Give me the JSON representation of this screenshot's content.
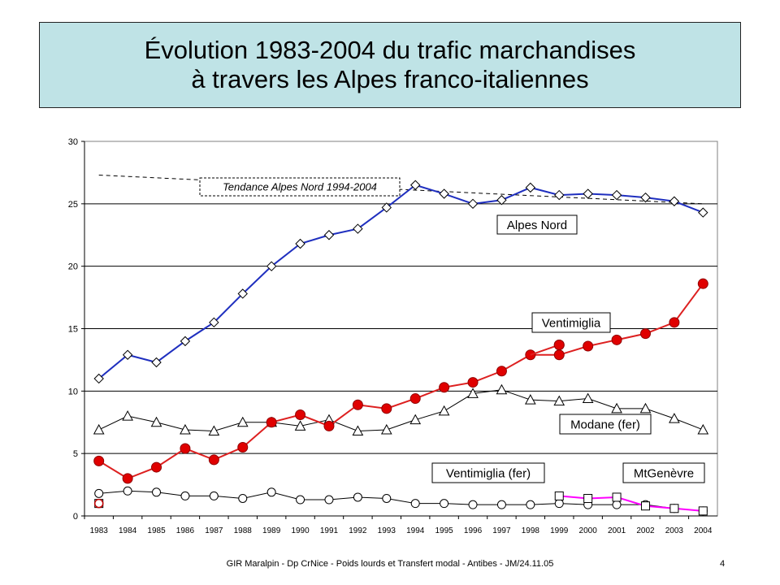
{
  "slide": {
    "title_line1": "Évolution 1983-2004 du trafic marchandises",
    "title_line2": "à travers les Alpes franco-italiennes",
    "footer": "GIR Maralpin - Dp CrNice - Poids lourds et Transfert modal - Antibes - JM/24.11.05",
    "page_number": "4"
  },
  "chart_data": {
    "type": "line",
    "title": "",
    "xlabel": "",
    "ylabel": "",
    "ylim": [
      0,
      30
    ],
    "yticks": [
      "0",
      "5",
      "10",
      "15",
      "20",
      "25",
      "30"
    ],
    "categories": [
      "1983",
      "1984",
      "1985",
      "1986",
      "1987",
      "1988",
      "1989",
      "1990",
      "1991",
      "1992",
      "1993",
      "1994",
      "1995",
      "1996",
      "1997",
      "1998",
      "1999",
      "2000",
      "2001",
      "2002",
      "2003",
      "2004"
    ],
    "grid": "horizontal",
    "series": [
      {
        "name": "Alpes Nord",
        "color": "#1f2fbf",
        "marker": "diamond",
        "values": [
          11.0,
          12.9,
          12.3,
          14.0,
          15.5,
          17.8,
          20.0,
          21.8,
          22.5,
          23.0,
          24.7,
          26.5,
          25.8,
          25.0,
          25.3,
          26.3,
          25.7,
          25.8,
          25.7,
          25.5,
          25.2,
          24.3
        ]
      },
      {
        "name": "Ventimiglia",
        "color": "#dd2020",
        "marker": "circle-filled",
        "values": [
          4.4,
          3.0,
          3.9,
          5.4,
          4.5,
          5.5,
          7.5,
          8.1,
          7.2,
          8.9,
          8.6,
          9.4,
          10.3,
          10.7,
          11.6,
          12.9,
          12.9,
          13.6,
          14.1,
          14.6,
          15.5,
          18.6
        ],
        "extra_points": [
          {
            "x": "1999",
            "y": 13.7
          }
        ]
      },
      {
        "name": "Modane (fer)",
        "color": "#000000",
        "marker": "triangle",
        "values": [
          6.9,
          8.0,
          7.5,
          6.9,
          6.8,
          7.5,
          7.5,
          7.2,
          7.7,
          6.8,
          6.9,
          7.7,
          8.4,
          9.8,
          10.1,
          9.3,
          9.2,
          9.4,
          8.6,
          8.6,
          7.8,
          6.9
        ]
      },
      {
        "name": "Ventimiglia (fer)",
        "color": "#000000",
        "marker": "circle-open",
        "values": [
          1.8,
          2.0,
          1.9,
          1.6,
          1.6,
          1.4,
          1.9,
          1.3,
          1.3,
          1.5,
          1.4,
          1.0,
          1.0,
          0.9,
          0.9,
          0.9,
          1.0,
          0.9,
          0.9,
          0.9,
          0.6,
          0.4
        ]
      },
      {
        "name": "MtGenèvre",
        "color": "#ff00ff",
        "marker": "square-open",
        "values": [
          null,
          null,
          null,
          null,
          null,
          null,
          null,
          null,
          null,
          null,
          null,
          null,
          null,
          null,
          null,
          null,
          1.6,
          1.4,
          1.5,
          0.8,
          0.6,
          0.4
        ]
      }
    ],
    "trend": {
      "name": "Tendance Alpes Nord 1994-2004",
      "style": "dashed",
      "from": {
        "x": "1983",
        "y": 27.3
      },
      "to": {
        "x": "2004",
        "y": 25.0
      }
    },
    "labels": {
      "alpes_nord": "Alpes Nord",
      "ventimiglia": "Ventimiglia",
      "modane": "Modane (fer)",
      "ventimiglia_fer": "Ventimiglia (fer)",
      "mtgenevre": "MtGenèvre",
      "trend": "Tendance Alpes Nord 1994-2004"
    },
    "first_point_extra": {
      "x": "1983",
      "y": 1.0,
      "note_marker": "circle-open-red-square"
    }
  }
}
